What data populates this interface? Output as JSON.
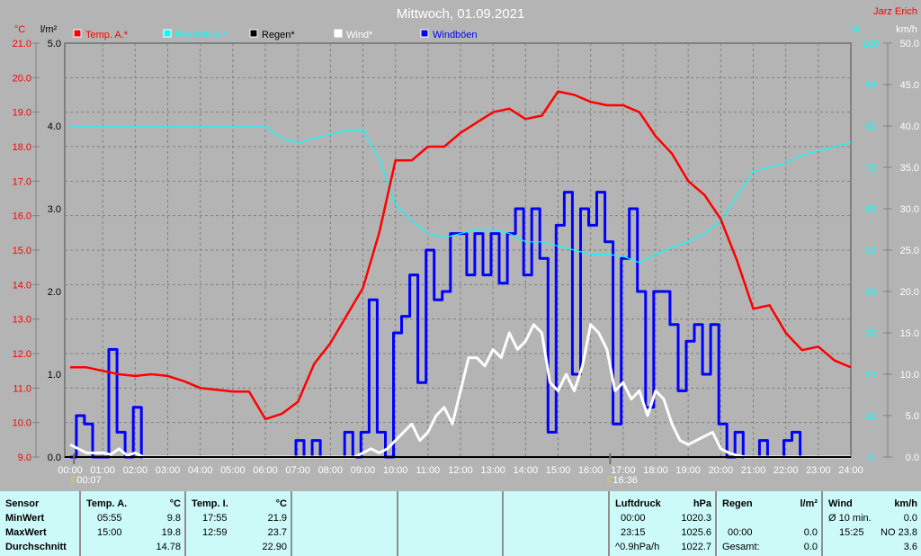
{
  "chart_data": {
    "type": "line",
    "title": "Mittwoch, 01.09.2021",
    "author": "Jarz Erich",
    "x_ticks": [
      "00:00",
      "01:00",
      "02:00",
      "03:00",
      "04:00",
      "05:00",
      "06:00",
      "07:00",
      "08:00",
      "09:00",
      "10:00",
      "11:00",
      "12:00",
      "13:00",
      "14:00",
      "15:00",
      "16:00",
      "17:00",
      "18:00",
      "19:00",
      "20:00",
      "21:00",
      "22:00",
      "23:00",
      "24:00"
    ],
    "axes": {
      "temp": {
        "unit": "°C",
        "range": [
          9.0,
          21.0
        ],
        "ticks": [
          "21.0",
          "20.0",
          "19.0",
          "18.0",
          "17.0",
          "16.0",
          "15.0",
          "14.0",
          "13.0",
          "12.0",
          "11.0",
          "10.0",
          "9.0"
        ],
        "color": "#ff0000"
      },
      "rain": {
        "unit": "l/m²",
        "range": [
          0,
          5
        ],
        "ticks": [
          "5.0",
          "4.0",
          "3.0",
          "2.0",
          "1.0",
          "0.0"
        ],
        "color": "#000000"
      },
      "humidity": {
        "unit": "%",
        "range": [
          0,
          100
        ],
        "ticks": [
          "100",
          "90",
          "80",
          "70",
          "60",
          "50",
          "40",
          "30",
          "20",
          "10",
          "0"
        ],
        "color": "#00ffff"
      },
      "wind": {
        "unit": "km/h",
        "range": [
          0,
          50
        ],
        "ticks": [
          "50.0",
          "45.0",
          "40.0",
          "35.0",
          "30.0",
          "25.0",
          "20.0",
          "15.0",
          "10.0",
          "5.0",
          "0.0"
        ],
        "color": "#ffffff"
      }
    },
    "grid": true,
    "legend": [
      {
        "name": "Temp. A.*",
        "color": "#ff0000"
      },
      {
        "name": "Feuchte A.*",
        "color": "#00ffff"
      },
      {
        "name": "Regen*",
        "color": "#000000"
      },
      {
        "name": "Wind*",
        "color": "#ffffff"
      },
      {
        "name": "Windböen",
        "color": "#0000ff"
      }
    ],
    "legend_placement": "top",
    "markers": [
      {
        "time": "00:07",
        "label": "00:07"
      },
      {
        "time": "16:36",
        "label": "16:36"
      }
    ],
    "series": [
      {
        "name": "Temp. A.*",
        "axis": "temp",
        "x_hours": [
          0,
          0.5,
          1,
          1.5,
          2,
          2.5,
          3,
          3.5,
          4,
          4.5,
          5,
          5.5,
          6,
          6.5,
          7,
          7.5,
          8,
          8.5,
          9,
          9.5,
          10,
          10.5,
          11,
          11.5,
          12,
          12.5,
          13,
          13.5,
          14,
          14.5,
          15,
          15.5,
          16,
          16.5,
          17,
          17.5,
          18,
          18.5,
          19,
          19.5,
          20,
          20.5,
          21,
          21.5,
          22,
          22.5,
          23,
          23.5,
          24
        ],
        "values": [
          11.6,
          11.6,
          11.5,
          11.4,
          11.35,
          11.4,
          11.35,
          11.2,
          11.0,
          10.95,
          10.9,
          10.9,
          10.1,
          10.25,
          10.6,
          11.7,
          12.3,
          13.1,
          13.9,
          15.5,
          17.6,
          17.6,
          18.0,
          18.0,
          18.4,
          18.7,
          19.0,
          19.1,
          18.8,
          18.9,
          19.6,
          19.5,
          19.3,
          19.2,
          19.2,
          19.0,
          18.3,
          17.8,
          17.0,
          16.6,
          15.9,
          14.7,
          13.3,
          13.4,
          12.6,
          12.1,
          12.2,
          11.8,
          11.6
        ]
      },
      {
        "name": "Feuchte A.*",
        "axis": "humidity",
        "x_hours": [
          0,
          1,
          2,
          3,
          4,
          5,
          6,
          6.5,
          7,
          7.5,
          8,
          8.5,
          9,
          9.5,
          10,
          10.5,
          11,
          11.5,
          12,
          12.5,
          13,
          13.5,
          14,
          14.5,
          15,
          15.5,
          16,
          16.5,
          17,
          17.5,
          18,
          18.5,
          19,
          19.5,
          20,
          20.5,
          21,
          21.5,
          22,
          22.5,
          23,
          23.5,
          24
        ],
        "values": [
          80,
          80,
          80,
          80,
          80,
          80,
          80,
          77,
          76,
          77,
          78,
          79,
          79,
          72,
          61,
          57,
          54,
          53,
          54,
          55,
          55,
          54,
          52,
          52,
          51,
          50,
          49,
          49,
          48.5,
          47,
          49,
          50.6,
          52,
          54,
          57,
          63,
          69,
          70,
          71,
          73,
          74,
          75,
          76
        ]
      },
      {
        "name": "Regen*",
        "axis": "rain",
        "x_hours": [
          0,
          24
        ],
        "values": [
          0,
          0
        ]
      },
      {
        "name": "Wind*",
        "axis": "wind",
        "interval_minutes": 15,
        "values": [
          1.5,
          1,
          0.5,
          0.5,
          0.5,
          0.3,
          1,
          0.2,
          0.5,
          0,
          0,
          0,
          0,
          0,
          0,
          0,
          0,
          0,
          0,
          0,
          0,
          0,
          0,
          0,
          0,
          0,
          0,
          0,
          0,
          0,
          0,
          0,
          0,
          0,
          0,
          0,
          0.5,
          1,
          0.5,
          1,
          2,
          3,
          4,
          2,
          3,
          5,
          6,
          4,
          8,
          12,
          12,
          11,
          13,
          12,
          15,
          13,
          14,
          16,
          15,
          9,
          8,
          10,
          8,
          11,
          16,
          15,
          13,
          8,
          9,
          7,
          8,
          5,
          8,
          7,
          4,
          2,
          1.5,
          2,
          2.5,
          3,
          1,
          0.5,
          0.2,
          0,
          0,
          0,
          0,
          0,
          0,
          0,
          0,
          0,
          0,
          0,
          0,
          0,
          0
        ]
      },
      {
        "name": "Windböen",
        "axis": "wind",
        "interval_minutes": 15,
        "values": [
          0,
          5,
          4,
          0,
          0,
          13,
          3,
          0,
          6,
          0,
          0,
          0,
          0,
          0,
          0,
          0,
          0,
          0,
          0,
          0,
          0,
          0,
          0,
          0,
          0,
          0,
          0,
          0,
          2,
          0,
          2,
          0,
          0,
          0,
          3,
          0,
          3,
          19,
          3,
          0,
          15,
          17,
          22,
          9,
          25,
          19,
          20,
          27,
          27,
          22,
          27,
          22,
          27,
          21,
          27,
          30,
          22,
          30,
          24,
          3,
          28,
          32,
          10,
          30,
          28,
          32,
          26,
          4,
          24,
          30,
          20,
          6,
          20,
          20,
          16,
          8,
          14,
          16,
          10,
          16,
          4,
          0,
          3,
          0,
          0,
          2,
          0,
          0,
          2,
          3,
          0,
          0,
          0,
          0,
          0,
          0,
          0
        ]
      }
    ]
  },
  "table": {
    "sensor": {
      "header": "Sensor",
      "min": "MinWert",
      "max": "MaxWert",
      "avg": "Durchschnitt"
    },
    "temp_a": {
      "header": "Temp. A.",
      "unit": "°C",
      "min_time": "05:55",
      "min": "9.8",
      "max_time": "15:00",
      "max": "19.8",
      "avg": "14.78"
    },
    "temp_i": {
      "header": "Temp. I.",
      "unit": "°C",
      "min_time": "17:55",
      "min": "21.9",
      "max_time": "12:59",
      "max": "23.7",
      "avg": "22.90"
    },
    "pressure": {
      "header": "Luftdruck",
      "unit": "hPa",
      "min_time": "00:00",
      "min": "1020.3",
      "max_time": "23:15",
      "max": "1025.6",
      "trend": "^0.9hPa/h",
      "avg": "1022.7"
    },
    "rain": {
      "header": "Regen",
      "unit": "l/m²",
      "max_time": "00:00",
      "max": "0.0",
      "total_label": "Gesamt:",
      "total": "0.0"
    },
    "wind": {
      "header": "Wind",
      "unit": "km/h",
      "avg10_label": "Ø 10 min.",
      "avg10": "0.0",
      "max_time": "15:25",
      "max": "NO 23.8",
      "avg": "3.6"
    }
  }
}
